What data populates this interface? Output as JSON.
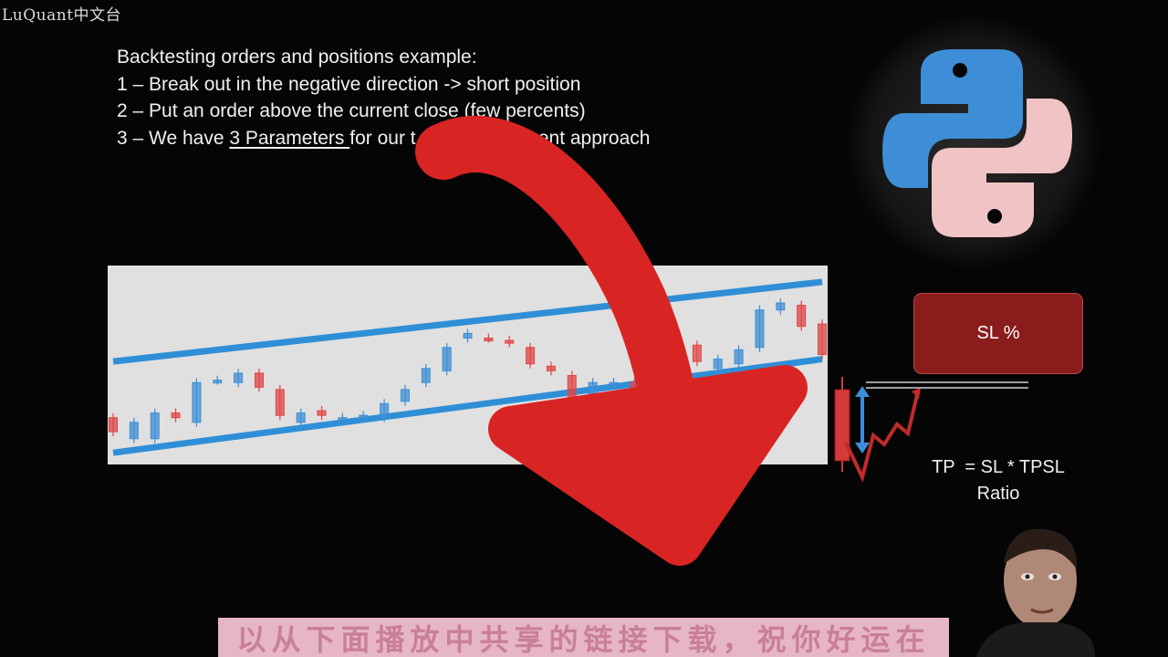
{
  "watermark": "LuQuant中文台",
  "slide": {
    "lines": [
      {
        "pre": "Backtesting orders and positions example:"
      },
      {
        "pre": "1 – Break out in the negative direction -> short position"
      },
      {
        "pre": "2 – Put an order above the current close (few percents)"
      },
      {
        "pre": "3 – We have ",
        "underlined": "3 Parameters ",
        "post": "for our t          anagement approach"
      }
    ],
    "sl_label": "SL %",
    "tp_formula_line1": "TP  = SL * TPSL",
    "tp_formula_line2": "Ratio"
  },
  "chart_data": {
    "type": "candlestick",
    "title": "",
    "candles": [
      {
        "o": 0.95,
        "c": 0.89,
        "dir": "down"
      },
      {
        "o": 0.93,
        "c": 0.86,
        "dir": "up"
      },
      {
        "o": 0.97,
        "c": 0.86,
        "dir": "up"
      },
      {
        "o": 0.95,
        "c": 0.97,
        "dir": "down"
      },
      {
        "o": 1.1,
        "c": 0.93,
        "dir": "up"
      },
      {
        "o": 1.11,
        "c": 1.11,
        "dir": "up"
      },
      {
        "o": 1.14,
        "c": 1.1,
        "dir": "up"
      },
      {
        "o": 1.14,
        "c": 1.08,
        "dir": "down"
      },
      {
        "o": 1.07,
        "c": 0.96,
        "dir": "down"
      },
      {
        "o": 0.97,
        "c": 0.93,
        "dir": "up"
      },
      {
        "o": 0.98,
        "c": 0.96,
        "dir": "down"
      },
      {
        "o": 0.95,
        "c": 0.95,
        "dir": "up"
      },
      {
        "o": 0.96,
        "c": 0.95,
        "dir": "up"
      },
      {
        "o": 1.01,
        "c": 0.95,
        "dir": "up"
      },
      {
        "o": 1.07,
        "c": 1.02,
        "dir": "up"
      },
      {
        "o": 1.16,
        "c": 1.1,
        "dir": "up"
      },
      {
        "o": 1.25,
        "c": 1.15,
        "dir": "up"
      },
      {
        "o": 1.31,
        "c": 1.29,
        "dir": "up"
      },
      {
        "o": 1.29,
        "c": 1.29,
        "dir": "down"
      },
      {
        "o": 1.28,
        "c": 1.27,
        "dir": "down"
      },
      {
        "o": 1.25,
        "c": 1.18,
        "dir": "down"
      },
      {
        "o": 1.17,
        "c": 1.15,
        "dir": "down"
      },
      {
        "o": 1.13,
        "c": 1.01,
        "dir": "down"
      },
      {
        "o": 1.1,
        "c": 1.03,
        "dir": "up"
      },
      {
        "o": 1.1,
        "c": 1.1,
        "dir": "up"
      },
      {
        "o": 1.1,
        "c": 1.07,
        "dir": "down"
      },
      {
        "o": 1.1,
        "c": 1.07,
        "dir": "up"
      },
      {
        "o": 1.26,
        "c": 1.1,
        "dir": "up"
      },
      {
        "o": 1.26,
        "c": 1.19,
        "dir": "down"
      },
      {
        "o": 1.2,
        "c": 1.16,
        "dir": "up"
      },
      {
        "o": 1.24,
        "c": 1.18,
        "dir": "up"
      },
      {
        "o": 1.41,
        "c": 1.25,
        "dir": "up"
      },
      {
        "o": 1.44,
        "c": 1.41,
        "dir": "up"
      },
      {
        "o": 1.43,
        "c": 1.34,
        "dir": "down"
      },
      {
        "o": 1.35,
        "c": 1.22,
        "dir": "down"
      }
    ],
    "channel": {
      "upper": [
        [
          0,
          1.19
        ],
        [
          34,
          1.53
        ]
      ],
      "lower": [
        [
          0,
          0.8
        ],
        [
          34,
          1.2
        ]
      ]
    },
    "ylim": [
      0.75,
      1.6
    ],
    "colors": {
      "up": "#3d8ed6",
      "down": "#e04545",
      "channel": "#2f8fd6"
    }
  },
  "colors": {
    "background": "#050505",
    "python_blue": "#3d8ed6",
    "python_pink": "#f0c4c4",
    "arrow_red": "#d92424",
    "sl_box": "#8b1c1c",
    "subtitle_bg": "#e6b6c4"
  },
  "subtitle_text": "以从下面播放中共享的链接下载，祝你好运在"
}
